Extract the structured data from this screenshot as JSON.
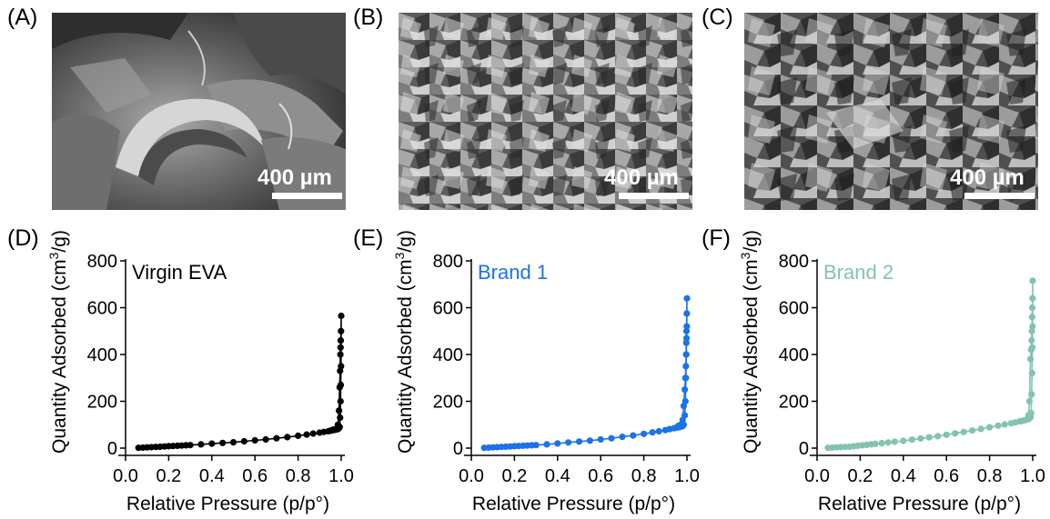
{
  "panels": {
    "a_label": "(A)",
    "b_label": "(B)",
    "c_label": "(C)",
    "d_label": "(D)",
    "e_label": "(E)",
    "f_label": "(F)"
  },
  "sem": {
    "a_scale": "400 µm",
    "b_scale": "400 µm",
    "c_scale": "400 µm"
  },
  "colors": {
    "virgin": "#000000",
    "brand1": "#1a73e8",
    "brand2": "#82c4ac"
  },
  "chart_data": [
    {
      "type": "line",
      "panel": "(D)",
      "annotation": "Virgin EVA",
      "xlabel": "Relative Pressure (p/p°)",
      "ylabel": "Quantity Adsorbed (cm3/g)",
      "xlim": [
        0.0,
        1.0
      ],
      "ylim": [
        0,
        800
      ],
      "xticks": [
        "0.0",
        "0.2",
        "0.4",
        "0.6",
        "0.8",
        "1.0"
      ],
      "yticks": [
        "0",
        "200",
        "400",
        "600",
        "800"
      ],
      "grid": false,
      "series": [
        {
          "color": "#000000",
          "x": [
            0.06,
            0.08,
            0.1,
            0.12,
            0.14,
            0.16,
            0.18,
            0.2,
            0.22,
            0.24,
            0.26,
            0.28,
            0.3,
            0.35,
            0.4,
            0.45,
            0.5,
            0.55,
            0.6,
            0.65,
            0.7,
            0.75,
            0.8,
            0.84,
            0.87,
            0.9,
            0.92,
            0.94,
            0.95,
            0.96,
            0.97,
            0.98,
            0.985,
            0.99,
            0.993,
            0.995,
            0.997,
            0.998,
            0.999,
            1.0,
            0.999,
            0.998,
            0.997,
            0.996,
            0.995,
            0.993,
            0.99,
            0.985,
            0.98,
            0.97,
            0.96
          ],
          "y": [
            1,
            2,
            3,
            4,
            5,
            6,
            7,
            8,
            9,
            10,
            11,
            12,
            13,
            16,
            19,
            22,
            25,
            29,
            33,
            37,
            42,
            47,
            53,
            58,
            62,
            66,
            69,
            72,
            74,
            76,
            78,
            80,
            82,
            85,
            90,
            130,
            200,
            270,
            350,
            565,
            500,
            460,
            430,
            400,
            330,
            260,
            160,
            100,
            85,
            80,
            78
          ]
        }
      ]
    },
    {
      "type": "line",
      "panel": "(E)",
      "annotation": "Brand 1",
      "xlabel": "Relative Pressure (p/p°)",
      "ylabel": "Quantity Adsorbed (cm3/g)",
      "xlim": [
        0.0,
        1.0
      ],
      "ylim": [
        0,
        800
      ],
      "xticks": [
        "0.0",
        "0.2",
        "0.4",
        "0.6",
        "0.8",
        "1.0"
      ],
      "yticks": [
        "0",
        "200",
        "400",
        "600",
        "800"
      ],
      "grid": false,
      "series": [
        {
          "color": "#1a73e8",
          "x": [
            0.06,
            0.08,
            0.1,
            0.12,
            0.14,
            0.16,
            0.18,
            0.2,
            0.22,
            0.24,
            0.26,
            0.28,
            0.3,
            0.35,
            0.4,
            0.45,
            0.5,
            0.55,
            0.6,
            0.65,
            0.7,
            0.75,
            0.8,
            0.84,
            0.87,
            0.9,
            0.92,
            0.94,
            0.95,
            0.96,
            0.97,
            0.98,
            0.985,
            0.99,
            0.993,
            0.995,
            0.997,
            0.998,
            0.999,
            1.0,
            0.999,
            0.998,
            0.997,
            0.996,
            0.995,
            0.993,
            0.99,
            0.985,
            0.98,
            0.97,
            0.96
          ],
          "y": [
            1,
            2,
            3,
            4,
            5,
            6,
            7,
            8,
            9,
            10,
            11,
            12,
            13,
            16,
            20,
            24,
            28,
            32,
            37,
            42,
            48,
            54,
            61,
            67,
            72,
            77,
            81,
            85,
            87,
            89,
            91,
            94,
            100,
            140,
            200,
            300,
            400,
            470,
            520,
            640,
            575,
            500,
            450,
            400,
            350,
            300,
            250,
            180,
            120,
            100,
            95
          ]
        }
      ]
    },
    {
      "type": "line",
      "panel": "(F)",
      "annotation": "Brand 2",
      "xlabel": "Relative Pressure (p/p°)",
      "ylabel": "Quantity Adsorbed (cm3/g)",
      "xlim": [
        0.0,
        1.0
      ],
      "ylim": [
        0,
        800
      ],
      "xticks": [
        "0.0",
        "0.2",
        "0.4",
        "0.6",
        "0.8",
        "1.0"
      ],
      "yticks": [
        "0",
        "200",
        "400",
        "600",
        "800"
      ],
      "grid": false,
      "series": [
        {
          "color": "#82c4ac",
          "x": [
            0.05,
            0.07,
            0.09,
            0.11,
            0.13,
            0.15,
            0.17,
            0.19,
            0.21,
            0.23,
            0.25,
            0.27,
            0.3,
            0.33,
            0.36,
            0.4,
            0.44,
            0.48,
            0.52,
            0.56,
            0.6,
            0.64,
            0.68,
            0.72,
            0.76,
            0.8,
            0.84,
            0.87,
            0.9,
            0.92,
            0.94,
            0.95,
            0.96,
            0.97,
            0.98,
            0.985,
            0.99,
            0.993,
            0.995,
            0.997,
            0.998,
            0.999,
            1.0,
            0.999,
            0.998,
            0.997,
            0.996,
            0.995,
            0.993,
            0.99,
            0.985,
            0.98
          ],
          "y": [
            1,
            2,
            3,
            4,
            5,
            6,
            8,
            10,
            12,
            14,
            16,
            18,
            21,
            24,
            27,
            31,
            36,
            41,
            46,
            51,
            57,
            63,
            69,
            75,
            82,
            89,
            96,
            101,
            106,
            110,
            114,
            116,
            118,
            121,
            124,
            127,
            132,
            150,
            230,
            320,
            430,
            520,
            715,
            640,
            600,
            560,
            500,
            460,
            420,
            380,
            200,
            140
          ]
        }
      ]
    }
  ]
}
